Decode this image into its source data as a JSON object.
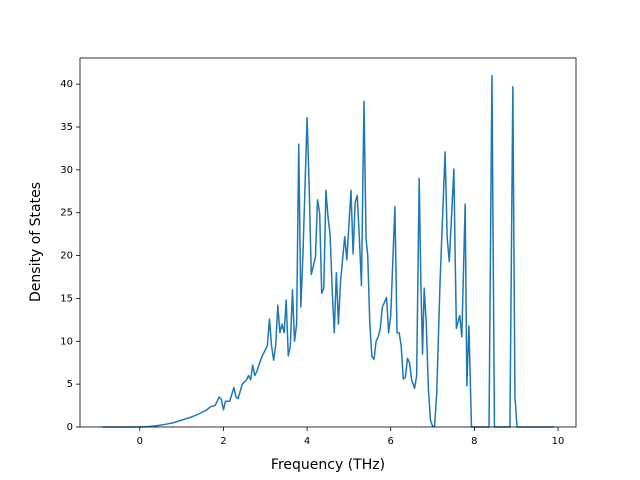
{
  "chart_data": {
    "type": "line",
    "xlabel": "Frequency (THz)",
    "ylabel": "Density of States",
    "x": [
      -0.9,
      -0.5,
      0,
      0.2,
      0.4,
      0.6,
      0.8,
      1.0,
      1.2,
      1.4,
      1.6,
      1.7,
      1.8,
      1.9,
      1.95,
      2.0,
      2.05,
      2.15,
      2.25,
      2.3,
      2.35,
      2.45,
      2.55,
      2.6,
      2.65,
      2.7,
      2.75,
      2.8,
      2.9,
      3.0,
      3.05,
      3.1,
      3.15,
      3.2,
      3.25,
      3.3,
      3.35,
      3.4,
      3.45,
      3.5,
      3.55,
      3.6,
      3.65,
      3.7,
      3.75,
      3.8,
      3.85,
      3.9,
      3.95,
      4.0,
      4.05,
      4.1,
      4.2,
      4.25,
      4.3,
      4.35,
      4.4,
      4.45,
      4.5,
      4.55,
      4.6,
      4.65,
      4.7,
      4.75,
      4.8,
      4.9,
      4.95,
      5.05,
      5.1,
      5.15,
      5.2,
      5.25,
      5.3,
      5.36,
      5.41,
      5.45,
      5.5,
      5.55,
      5.6,
      5.65,
      5.7,
      5.75,
      5.8,
      5.9,
      5.95,
      6.0,
      6.1,
      6.15,
      6.2,
      6.25,
      6.3,
      6.35,
      6.4,
      6.45,
      6.5,
      6.57,
      6.62,
      6.68,
      6.72,
      6.76,
      6.8,
      6.85,
      6.9,
      6.95,
      7.0,
      7.05,
      7.1,
      7.18,
      7.3,
      7.35,
      7.4,
      7.51,
      7.54,
      7.57,
      7.65,
      7.7,
      7.78,
      7.82,
      7.87,
      7.93,
      8.35,
      8.42,
      8.48,
      8.85,
      8.92,
      8.97,
      9.02,
      9.9
    ],
    "series": [
      {
        "name": "DOS",
        "color": "#1f77b4",
        "values": [
          0,
          0,
          0,
          0.05,
          0.15,
          0.3,
          0.5,
          0.8,
          1.1,
          1.5,
          2.0,
          2.4,
          2.5,
          3.5,
          3.2,
          2.0,
          3.0,
          3.0,
          4.6,
          3.5,
          3.3,
          5.0,
          5.5,
          6.0,
          5.5,
          7.2,
          6.0,
          6.5,
          8.0,
          9.0,
          9.5,
          12.6,
          9.5,
          7.8,
          9.5,
          14.2,
          11.0,
          12.0,
          11.0,
          14.8,
          8.3,
          9.5,
          16.0,
          10.0,
          12.0,
          33.0,
          14.0,
          20.0,
          28.0,
          36.1,
          28.0,
          17.8,
          19.8,
          26.5,
          25.0,
          15.6,
          16.2,
          27.6,
          24.5,
          22.5,
          16.0,
          11.0,
          18.0,
          12.0,
          17.0,
          22.2,
          19.5,
          27.6,
          20.2,
          26.2,
          27.0,
          22.0,
          16.5,
          38.0,
          22.0,
          20.0,
          12.0,
          8.2,
          7.9,
          10.0,
          10.5,
          11.5,
          14.0,
          15.1,
          11.0,
          13.0,
          25.7,
          11.0,
          11.0,
          9.5,
          5.6,
          5.8,
          8.0,
          7.5,
          5.5,
          4.5,
          6.0,
          29.0,
          17.0,
          8.5,
          16.2,
          12.0,
          4.5,
          0.8,
          0.1,
          0.1,
          4.0,
          17.0,
          32.1,
          22.0,
          19.3,
          30.1,
          20.0,
          11.5,
          13.0,
          10.5,
          26.0,
          4.8,
          11.8,
          0,
          0,
          41.0,
          0,
          0,
          39.7,
          3.5,
          0,
          0
        ]
      }
    ],
    "xlim": [
      -1.43,
      10.43
    ],
    "ylim": [
      0,
      43.05
    ],
    "xticks": [
      0,
      2,
      4,
      6,
      8,
      10
    ],
    "yticks": [
      0,
      5,
      10,
      15,
      20,
      25,
      30,
      35,
      40
    ]
  }
}
